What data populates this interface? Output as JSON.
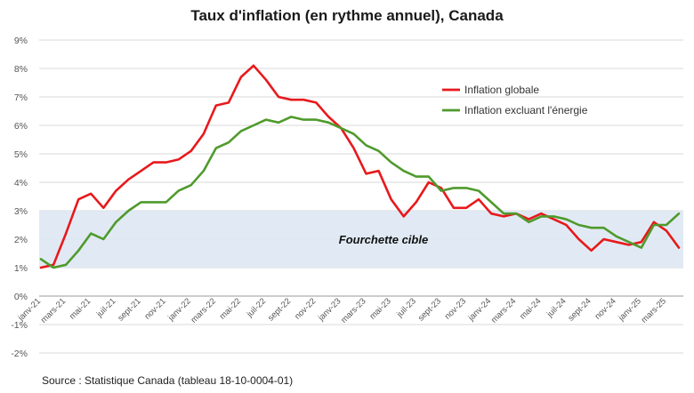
{
  "chart_data": {
    "type": "line",
    "title": "Taux d'inflation (en rythme annuel), Canada",
    "source": "Source : Statistique Canada (tableau 18-10-0004-01)",
    "target_band": {
      "label": "Fourchette cible",
      "low": 1,
      "high": 3
    },
    "ylim": [
      -2,
      9
    ],
    "y_ticks": [
      -2,
      -1,
      0,
      1,
      2,
      3,
      4,
      5,
      6,
      7,
      8,
      9
    ],
    "y_tick_labels": [
      "-2%",
      "-1%",
      "0%",
      "1%",
      "2%",
      "3%",
      "4%",
      "5%",
      "6%",
      "7%",
      "8%",
      "9%"
    ],
    "x": [
      "janv-21",
      "févr-21",
      "mars-21",
      "avr-21",
      "mai-21",
      "juin-21",
      "juil-21",
      "août-21",
      "sept-21",
      "oct-21",
      "nov-21",
      "déc-21",
      "janv-22",
      "févr-22",
      "mars-22",
      "avr-22",
      "mai-22",
      "juin-22",
      "juil-22",
      "août-22",
      "sept-22",
      "oct-22",
      "nov-22",
      "déc-22",
      "janv-23",
      "févr-23",
      "mars-23",
      "avr-23",
      "mai-23",
      "juin-23",
      "juil-23",
      "août-23",
      "sept-23",
      "oct-23",
      "nov-23",
      "déc-23",
      "janv-24",
      "févr-24",
      "mars-24",
      "avr-24",
      "mai-24",
      "juin-24",
      "juil-24",
      "août-24",
      "sept-24",
      "oct-24",
      "nov-24",
      "déc-24",
      "janv-25",
      "févr-25",
      "mars-25",
      "avr-25"
    ],
    "x_tick_labels": [
      "janv-21",
      "mars-21",
      "mai-21",
      "juil-21",
      "sept-21",
      "nov-21",
      "janv-22",
      "mars-22",
      "mai-22",
      "juil-22",
      "sept-22",
      "nov-22",
      "janv-23",
      "mars-23",
      "mai-23",
      "juil-23",
      "sept-23",
      "nov-23",
      "janv-24",
      "mars-24",
      "mai-24",
      "juil-24",
      "sept-24",
      "nov-24",
      "janv-25",
      "mars-25"
    ],
    "grid": true,
    "legend_position": "top-right",
    "series": [
      {
        "name": "Inflation globale",
        "color": "#e8191c",
        "values": [
          1.0,
          1.1,
          2.2,
          3.4,
          3.6,
          3.1,
          3.7,
          4.1,
          4.4,
          4.7,
          4.7,
          4.8,
          5.1,
          5.7,
          6.7,
          6.8,
          7.7,
          8.1,
          7.6,
          7.0,
          6.9,
          6.9,
          6.8,
          6.3,
          5.9,
          5.2,
          4.3,
          4.4,
          3.4,
          2.8,
          3.3,
          4.0,
          3.8,
          3.1,
          3.1,
          3.4,
          2.9,
          2.8,
          2.9,
          2.7,
          2.9,
          2.7,
          2.5,
          2.0,
          1.6,
          2.0,
          1.9,
          1.8,
          1.9,
          2.6,
          2.3,
          1.7
        ]
      },
      {
        "name": "Inflation excluant l'énergie",
        "color": "#4f9a2c",
        "values": [
          1.3,
          1.0,
          1.1,
          1.6,
          2.2,
          2.0,
          2.6,
          3.0,
          3.3,
          3.3,
          3.3,
          3.7,
          3.9,
          4.4,
          5.2,
          5.4,
          5.8,
          6.0,
          6.2,
          6.1,
          6.3,
          6.2,
          6.2,
          6.1,
          5.9,
          5.7,
          5.3,
          5.1,
          4.7,
          4.4,
          4.2,
          4.2,
          3.7,
          3.8,
          3.8,
          3.7,
          3.3,
          2.9,
          2.9,
          2.6,
          2.8,
          2.8,
          2.7,
          2.5,
          2.4,
          2.4,
          2.1,
          1.9,
          1.7,
          2.5,
          2.5,
          2.9
        ]
      }
    ]
  }
}
